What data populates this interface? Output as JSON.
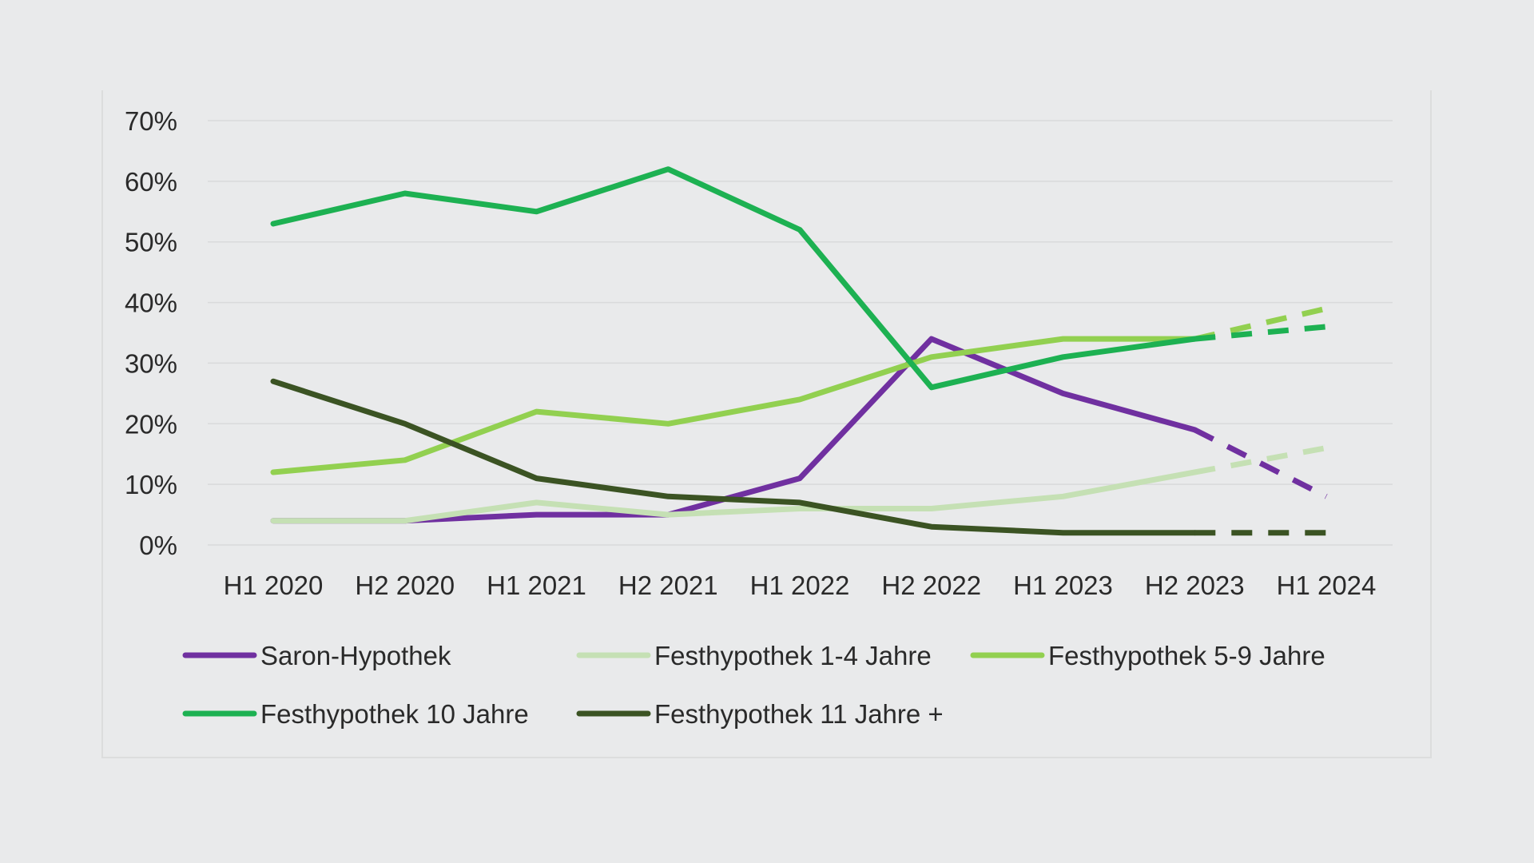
{
  "chart_data": {
    "type": "line",
    "categories": [
      "H1 2020",
      "H2 2020",
      "H1 2021",
      "H2 2021",
      "H1 2022",
      "H2 2022",
      "H1 2023",
      "H2 2023",
      "H1 2024"
    ],
    "y_ticks": [
      "0%",
      "10%",
      "20%",
      "30%",
      "40%",
      "50%",
      "60%",
      "70%"
    ],
    "ylim": [
      0,
      70
    ],
    "grid": true,
    "legend_position": "bottom",
    "projection_note": "last segment (H2 2023 to H1 2024) is drawn dashed",
    "series": [
      {
        "name": "Saron-Hypothek",
        "color": "#7030a0",
        "values": [
          4,
          4,
          5,
          5,
          11,
          34,
          25,
          19,
          8
        ]
      },
      {
        "name": "Festhypothek 1-4 Jahre",
        "color": "#c5e0b4",
        "values": [
          4,
          4,
          7,
          5,
          6,
          6,
          8,
          12,
          16
        ]
      },
      {
        "name": "Festhypothek 5-9 Jahre",
        "color": "#92d050",
        "values": [
          12,
          14,
          22,
          20,
          24,
          31,
          34,
          34,
          39
        ]
      },
      {
        "name": "Festhypothek 10 Jahre",
        "color": "#1db152",
        "values": [
          53,
          58,
          55,
          62,
          52,
          26,
          31,
          34,
          36
        ]
      },
      {
        "name": "Festhypothek 11 Jahre +",
        "color": "#3b5323",
        "values": [
          27,
          20,
          11,
          8,
          7,
          3,
          2,
          2,
          2
        ]
      }
    ]
  }
}
